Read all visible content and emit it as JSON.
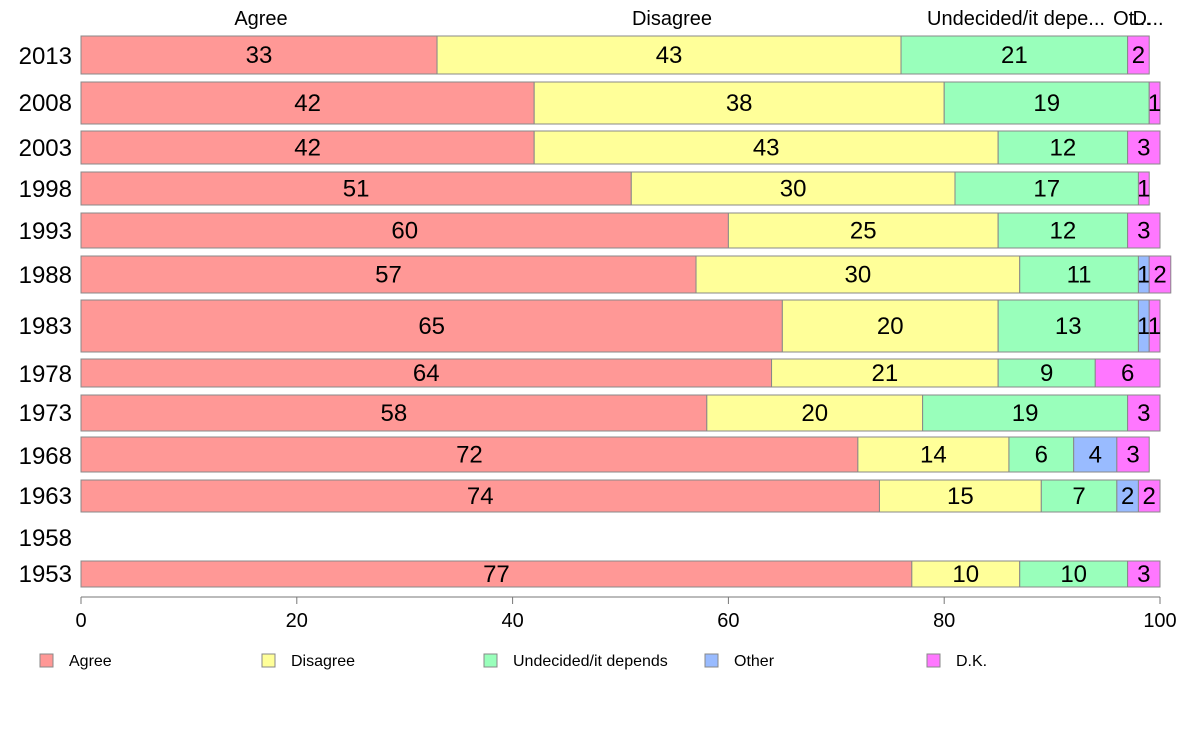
{
  "chart_data": {
    "type": "bar",
    "orientation": "horizontal",
    "stacked": true,
    "categories": [
      "2013",
      "2008",
      "2003",
      "1998",
      "1993",
      "1988",
      "1983",
      "1978",
      "1973",
      "1968",
      "1963",
      "1958",
      "1953"
    ],
    "series": [
      {
        "name": "Agree",
        "color": "#ff9896",
        "values": [
          33,
          42,
          42,
          51,
          60,
          57,
          65,
          64,
          58,
          72,
          74,
          null,
          77
        ]
      },
      {
        "name": "Disagree",
        "color": "#ffff99",
        "values": [
          43,
          38,
          43,
          30,
          25,
          30,
          20,
          21,
          20,
          14,
          15,
          null,
          10
        ]
      },
      {
        "name": "Undecided/it depends",
        "color": "#99ffbb",
        "values": [
          21,
          19,
          12,
          17,
          12,
          11,
          13,
          9,
          19,
          6,
          7,
          null,
          10
        ]
      },
      {
        "name": "Other",
        "color": "#99bbff",
        "values": [
          0,
          0,
          0,
          0,
          0,
          1,
          1,
          0,
          0,
          4,
          2,
          null,
          0
        ]
      },
      {
        "name": "D.K.",
        "color": "#ff77ff",
        "values": [
          2,
          1,
          3,
          1,
          3,
          2,
          1,
          6,
          3,
          3,
          2,
          null,
          3
        ]
      }
    ],
    "top_labels": [
      "Agree",
      "Disagree",
      "Undecided/it depe...",
      "Ot...",
      "D..."
    ],
    "xlim": [
      0,
      100
    ],
    "xticks": [
      "0",
      "20",
      "40",
      "60",
      "80",
      "100"
    ],
    "grid": false,
    "legend": {
      "position": "bottom",
      "items": [
        "Agree",
        "Disagree",
        "Undecided/it depends",
        "Other",
        "D.K."
      ]
    }
  }
}
